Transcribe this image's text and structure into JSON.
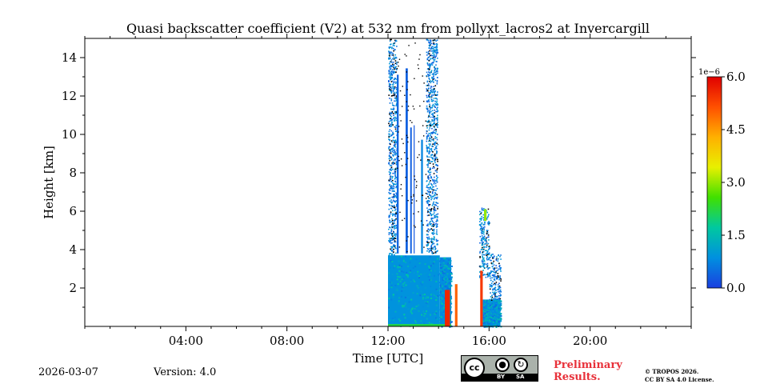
{
  "chart_data": {
    "type": "heatmap",
    "title": "Quasi backscatter coefficient (V2) at 532 nm from pollyxt_lacros2 at Invercargill",
    "xlabel": "Time [UTC]",
    "ylabel": "Height [km]",
    "xlim_hours": [
      0,
      24
    ],
    "ylim_km": [
      0,
      15
    ],
    "x_ticks": [
      {
        "hour": 4,
        "label": "04:00"
      },
      {
        "hour": 8,
        "label": "08:00"
      },
      {
        "hour": 12,
        "label": "12:00"
      },
      {
        "hour": 16,
        "label": "16:00"
      },
      {
        "hour": 20,
        "label": "20:00"
      }
    ],
    "y_ticks": [
      {
        "value": 2,
        "label": "2"
      },
      {
        "value": 4,
        "label": "4"
      },
      {
        "value": 6,
        "label": "6"
      },
      {
        "value": 8,
        "label": "8"
      },
      {
        "value": 10,
        "label": "10"
      },
      {
        "value": 12,
        "label": "12"
      },
      {
        "value": 14,
        "label": "14"
      }
    ],
    "colorbar": {
      "exponent_label": "1e−6",
      "range": [
        0,
        6
      ],
      "ticks": [
        {
          "value": 0.0,
          "label": "0.0"
        },
        {
          "value": 1.5,
          "label": "1.5"
        },
        {
          "value": 3.0,
          "label": "3.0"
        },
        {
          "value": 4.5,
          "label": "4.5"
        },
        {
          "value": 6.0,
          "label": "6.0"
        }
      ],
      "colors": [
        "#1a3fe0",
        "#0090e0",
        "#00c8a0",
        "#40e000",
        "#e8f000",
        "#ffb000",
        "#ff5000",
        "#e00000"
      ]
    },
    "data_regions": [
      {
        "t0": 12.0,
        "t1": 14.05,
        "h0": 0.0,
        "h1": 3.7,
        "value": 0.9,
        "fill": "dense"
      },
      {
        "t0": 14.05,
        "t1": 14.5,
        "h0": 0.0,
        "h1": 3.6,
        "value": 0.8,
        "fill": "dense"
      },
      {
        "t0": 15.75,
        "t1": 16.45,
        "h0": 0.0,
        "h1": 1.4,
        "value": 0.8,
        "fill": "dense"
      },
      {
        "t0": 12.0,
        "t1": 12.35,
        "h0": 3.7,
        "h1": 15.0,
        "value": 0.6,
        "fill": "speckle"
      },
      {
        "t0": 13.5,
        "t1": 13.95,
        "h0": 3.8,
        "h1": 15.0,
        "value": 0.6,
        "fill": "speckle"
      },
      {
        "t0": 12.35,
        "t1": 13.5,
        "h0": 3.8,
        "h1": 15.0,
        "value": 0.5,
        "fill": "streaks"
      },
      {
        "t0": 15.6,
        "t1": 16.0,
        "h0": 2.5,
        "h1": 6.2,
        "value": 0.7,
        "fill": "speckle"
      },
      {
        "t0": 16.0,
        "t1": 16.45,
        "h0": 1.4,
        "h1": 3.8,
        "value": 0.6,
        "fill": "speckle"
      }
    ],
    "hot_features": [
      {
        "t0": 12.0,
        "t1": 14.5,
        "h0": 0.0,
        "h1": 0.12,
        "value": 2.2
      },
      {
        "t0": 14.25,
        "t1": 14.45,
        "h0": 0.0,
        "h1": 1.9,
        "value": 5.6
      },
      {
        "t0": 14.65,
        "t1": 14.75,
        "h0": 0.0,
        "h1": 2.2,
        "value": 5.0
      },
      {
        "t0": 15.65,
        "t1": 15.75,
        "h0": 0.0,
        "h1": 2.9,
        "value": 5.4
      },
      {
        "t0": 15.8,
        "t1": 15.9,
        "h0": 5.5,
        "h1": 6.1,
        "value": 3.0
      }
    ]
  },
  "footer": {
    "date": "2026-03-07",
    "version": "Version: 4.0",
    "preliminary_line1": "Preliminary",
    "preliminary_line2": "Results.",
    "license_line1": "© TROPOS 2026.",
    "license_line2": "CC BY SA 4.0 License.",
    "badge_cc": "cc",
    "badge_by": "BY",
    "badge_sa": "SA"
  }
}
